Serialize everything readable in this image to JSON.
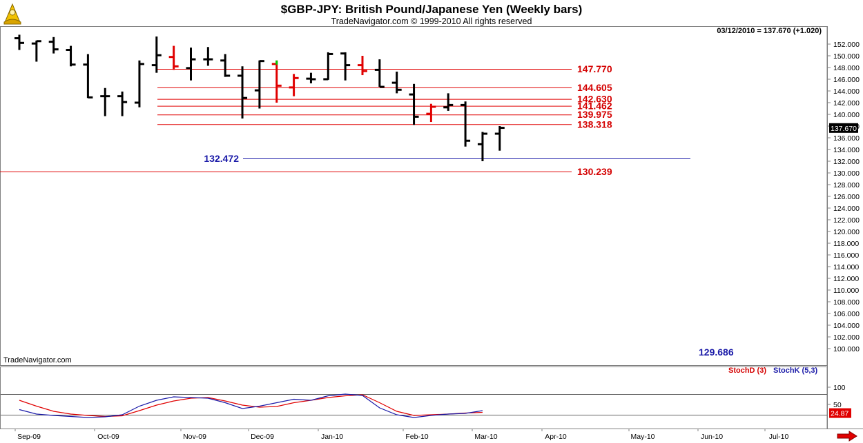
{
  "header": {
    "title": "$GBP-JPY:  British Pound/Japanese Yen  (Weekly bars)",
    "subtitle": "TradeNavigator.com © 1999-2010 All rights reserved",
    "last_stamp": "03/12/2010 = 137.670 (+1.020)",
    "watermark": "TradeNavigator.com"
  },
  "colors": {
    "bar_up": "#000000",
    "bar_red": "#e00000",
    "bar_green_tip": "#00cc00",
    "level_red": "#e00000",
    "level_blue": "#1a1aa8",
    "label_red": "#d40000",
    "label_blue": "#1a1aa8",
    "stochd": "#e00000",
    "stochk": "#1a1aa8",
    "last_price_bg": "#000000"
  },
  "chart_data": [
    {
      "type": "ohlc",
      "title": "$GBP-JPY:  British Pound/Japanese Yen  (Weekly bars)",
      "ylim": [
        129.686,
        153.0
      ],
      "y_ticks": [
        "100.000",
        "102.000",
        "104.000",
        "106.000",
        "108.000",
        "110.000",
        "112.000",
        "114.000",
        "116.000",
        "118.000",
        "120.000",
        "122.000",
        "124.000",
        "126.000",
        "128.000",
        "130.000",
        "132.000",
        "134.000",
        "136.000",
        "138.000",
        "140.000",
        "142.000",
        "144.000",
        "146.000",
        "148.000",
        "150.000",
        "152.000"
      ],
      "y_tick_values": [
        100,
        102,
        104,
        106,
        108,
        110,
        112,
        114,
        116,
        118,
        120,
        122,
        124,
        126,
        128,
        130,
        132,
        134,
        136,
        138,
        140,
        142,
        144,
        146,
        148,
        150,
        152
      ],
      "x_labels": [
        "Sep-09",
        "Oct-09",
        "Nov-09",
        "Dec-09",
        "Jan-10",
        "Feb-10",
        "Mar-10",
        "Apr-10",
        "May-10",
        "Jun-10",
        "Jul-10"
      ],
      "last_price_label": "137.670",
      "bars": [
        {
          "o": 153.0,
          "h": 153.6,
          "l": 151.0,
          "c": 152.2,
          "color": "black"
        },
        {
          "o": 152.1,
          "h": 152.6,
          "l": 149.0,
          "c": 152.5,
          "color": "black"
        },
        {
          "o": 152.4,
          "h": 153.2,
          "l": 150.4,
          "c": 151.1,
          "color": "black"
        },
        {
          "o": 151.0,
          "h": 151.7,
          "l": 148.2,
          "c": 148.5,
          "color": "black"
        },
        {
          "o": 148.5,
          "h": 150.3,
          "l": 142.8,
          "c": 142.9,
          "color": "black"
        },
        {
          "o": 143.1,
          "h": 144.5,
          "l": 139.7,
          "c": 143.1,
          "color": "black"
        },
        {
          "o": 143.1,
          "h": 143.9,
          "l": 139.7,
          "c": 142.1,
          "color": "black"
        },
        {
          "o": 142.0,
          "h": 149.2,
          "l": 141.2,
          "c": 148.6,
          "color": "black"
        },
        {
          "o": 148.4,
          "h": 153.3,
          "l": 147.1,
          "c": 150.1,
          "color": "black"
        },
        {
          "o": 149.8,
          "h": 151.7,
          "l": 147.6,
          "c": 148.2,
          "color": "red"
        },
        {
          "o": 147.9,
          "h": 151.4,
          "l": 145.8,
          "c": 149.4,
          "color": "black"
        },
        {
          "o": 149.4,
          "h": 151.5,
          "l": 148.3,
          "c": 149.4,
          "color": "black"
        },
        {
          "o": 149.2,
          "h": 150.3,
          "l": 146.4,
          "c": 146.6,
          "color": "black"
        },
        {
          "o": 146.6,
          "h": 148.2,
          "l": 139.3,
          "c": 142.8,
          "color": "black"
        },
        {
          "o": 144.1,
          "h": 149.2,
          "l": 141.0,
          "c": 149.1,
          "color": "black"
        },
        {
          "o": 148.6,
          "h": 149.2,
          "l": 142.0,
          "c": 144.9,
          "color": "red",
          "green_tip": true
        },
        {
          "o": 144.6,
          "h": 146.9,
          "l": 143.1,
          "c": 146.2,
          "color": "red"
        },
        {
          "o": 146.1,
          "h": 147.1,
          "l": 145.3,
          "c": 146.0,
          "color": "black"
        },
        {
          "o": 146.0,
          "h": 150.6,
          "l": 145.9,
          "c": 150.3,
          "color": "black"
        },
        {
          "o": 150.4,
          "h": 150.6,
          "l": 145.8,
          "c": 148.4,
          "color": "black"
        },
        {
          "o": 148.4,
          "h": 150.0,
          "l": 146.7,
          "c": 147.4,
          "color": "red"
        },
        {
          "o": 147.6,
          "h": 149.4,
          "l": 144.7,
          "c": 144.7,
          "color": "black"
        },
        {
          "o": 145.4,
          "h": 147.3,
          "l": 143.6,
          "c": 144.2,
          "color": "black"
        },
        {
          "o": 143.4,
          "h": 145.2,
          "l": 138.2,
          "c": 139.6,
          "color": "black"
        },
        {
          "o": 140.1,
          "h": 141.8,
          "l": 138.7,
          "c": 141.3,
          "color": "red"
        },
        {
          "o": 141.2,
          "h": 143.6,
          "l": 140.6,
          "c": 141.6,
          "color": "black"
        },
        {
          "o": 141.6,
          "h": 142.2,
          "l": 134.5,
          "c": 135.5,
          "color": "black"
        },
        {
          "o": 134.9,
          "h": 137.0,
          "l": 132.0,
          "c": 136.7,
          "color": "black"
        },
        {
          "o": 136.7,
          "h": 138.0,
          "l": 133.8,
          "c": 137.7,
          "color": "black"
        }
      ],
      "levels": [
        {
          "value": 147.77,
          "label": "147.770",
          "color": "red"
        },
        {
          "value": 144.605,
          "label": "144.605",
          "color": "red"
        },
        {
          "value": 142.63,
          "label": "142.630",
          "color": "red"
        },
        {
          "value": 141.462,
          "label": "141.462",
          "color": "red"
        },
        {
          "value": 139.975,
          "label": "139.975",
          "color": "red"
        },
        {
          "value": 138.318,
          "label": "138.318",
          "color": "red"
        },
        {
          "value": 132.472,
          "label": "132.472",
          "color": "blue"
        },
        {
          "value": 130.239,
          "label": "130.239",
          "color": "red"
        }
      ],
      "extra_label": "129.686"
    },
    {
      "type": "line",
      "legend": [
        "StochD (3)",
        "StochK (5,3)"
      ],
      "y_tick_labels": [
        "100",
        "50"
      ],
      "y_tick_values": [
        100,
        50
      ],
      "last_value_label": "24.87",
      "ylim": [
        0,
        105
      ],
      "reference_lines": [
        80,
        20
      ],
      "series": [
        {
          "name": "StochD (3)",
          "color": "red",
          "values": [
            62,
            45,
            30,
            22,
            18,
            15,
            17,
            32,
            48,
            60,
            68,
            70,
            60,
            48,
            42,
            44,
            55,
            62,
            70,
            75,
            78,
            55,
            30,
            18,
            20,
            22,
            25,
            27
          ]
        },
        {
          "name": "StochK (5,3)",
          "color": "blue",
          "values": [
            35,
            22,
            18,
            15,
            12,
            14,
            20,
            45,
            62,
            72,
            70,
            68,
            55,
            38,
            45,
            55,
            65,
            62,
            75,
            80,
            76,
            40,
            20,
            12,
            18,
            22,
            24,
            32
          ]
        }
      ]
    }
  ]
}
